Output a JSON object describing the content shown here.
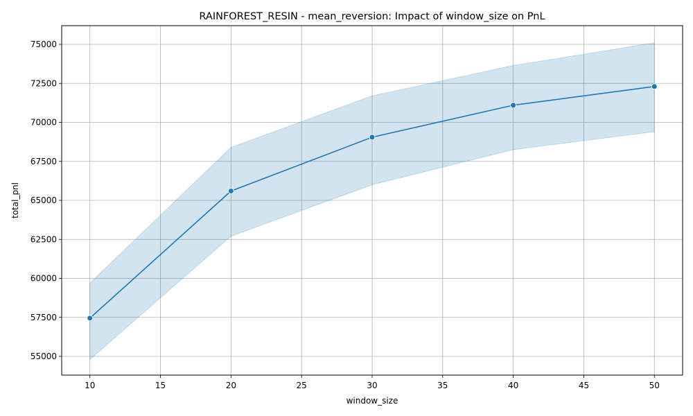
{
  "chart_data": {
    "type": "line",
    "title": "RAINFOREST_RESIN - mean_reversion: Impact of window_size on PnL",
    "xlabel": "window_size",
    "ylabel": "total_pnl",
    "xlim": [
      8,
      52
    ],
    "ylim": [
      53800,
      76200
    ],
    "x_ticks": [
      10,
      15,
      20,
      25,
      30,
      35,
      40,
      45,
      50
    ],
    "y_ticks": [
      55000,
      57500,
      60000,
      62500,
      65000,
      67500,
      70000,
      72500,
      75000
    ],
    "grid": true,
    "line_color": "#1f77b4",
    "band_color": "#1f77b4",
    "series": [
      {
        "x": [
          10,
          20,
          30,
          40,
          50
        ],
        "y": [
          57450,
          65600,
          69050,
          71100,
          72300
        ],
        "ci_lower": [
          54800,
          62700,
          66000,
          68250,
          69400
        ],
        "ci_upper": [
          59700,
          68400,
          71700,
          73650,
          75100
        ]
      }
    ]
  }
}
